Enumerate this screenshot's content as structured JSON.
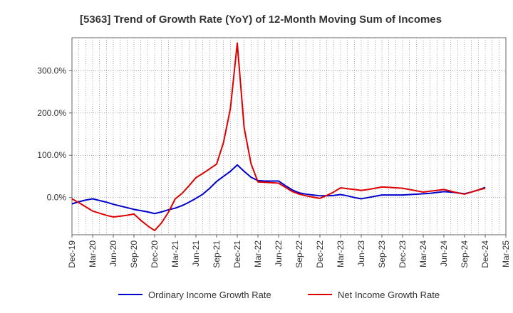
{
  "chart_data": {
    "type": "line",
    "title": "[5363]  Trend of Growth Rate (YoY) of 12-Month Moving Sum of Incomes",
    "xlabel": "",
    "ylabel": "",
    "grid": true,
    "legend_position": "bottom",
    "y_ticks": [
      "300.0%",
      "200.0%",
      "100.0%",
      "0.0%"
    ],
    "y_tick_values": [
      300,
      200,
      100,
      0
    ],
    "ylim": [
      -88,
      378
    ],
    "x_tick_labels": [
      "Dec-19",
      "Mar-20",
      "Jun-20",
      "Sep-20",
      "Dec-20",
      "Mar-21",
      "Jun-21",
      "Sep-21",
      "Dec-21",
      "Mar-22",
      "Jun-22",
      "Sep-22",
      "Dec-22",
      "Mar-23",
      "Jun-23",
      "Sep-23",
      "Dec-23",
      "Mar-24",
      "Jun-24",
      "Sep-24",
      "Dec-24",
      "Mar-25"
    ],
    "x": [
      "Dec-19",
      "Jan-20",
      "Feb-20",
      "Mar-20",
      "Apr-20",
      "May-20",
      "Jun-20",
      "Jul-20",
      "Aug-20",
      "Sep-20",
      "Oct-20",
      "Nov-20",
      "Dec-20",
      "Jan-21",
      "Feb-21",
      "Mar-21",
      "Apr-21",
      "May-21",
      "Jun-21",
      "Jul-21",
      "Aug-21",
      "Sep-21",
      "Oct-21",
      "Nov-21",
      "Dec-21",
      "Jan-22",
      "Feb-22",
      "Mar-22",
      "Apr-22",
      "May-22",
      "Jun-22",
      "Jul-22",
      "Aug-22",
      "Sep-22",
      "Oct-22",
      "Nov-22",
      "Dec-22",
      "Jan-23",
      "Feb-23",
      "Mar-23",
      "Apr-23",
      "May-23",
      "Jun-23",
      "Jul-23",
      "Aug-23",
      "Sep-23",
      "Oct-23",
      "Nov-23",
      "Dec-23",
      "Jan-24",
      "Feb-24",
      "Mar-24",
      "Apr-24",
      "May-24",
      "Jun-24",
      "Jul-24",
      "Aug-24",
      "Sep-24",
      "Oct-24",
      "Nov-24",
      "Dec-24"
    ],
    "series": [
      {
        "name": "Ordinary Income Growth Rate",
        "color": "#0000cc",
        "values": [
          -15,
          -10,
          -6,
          -3,
          -7,
          -11,
          -16,
          -20,
          -24,
          -28,
          -31,
          -34,
          -38,
          -34,
          -29,
          -25,
          -19,
          -11,
          -2,
          8,
          22,
          38,
          50,
          62,
          77,
          62,
          48,
          40,
          39,
          39,
          39,
          28,
          18,
          11,
          8,
          6,
          4,
          4,
          5,
          7,
          4,
          0,
          -3,
          0,
          3,
          6,
          6,
          6,
          6,
          7,
          8,
          9,
          10,
          12,
          14,
          13,
          11,
          9,
          13,
          18,
          24
        ]
      },
      {
        "name": "Net Income Growth Rate",
        "color": "#dd0000",
        "values": [
          -3,
          -12,
          -22,
          -32,
          -37,
          -42,
          -46,
          -44,
          -42,
          -39,
          -54,
          -67,
          -78,
          -60,
          -35,
          -3,
          10,
          28,
          47,
          57,
          68,
          79,
          130,
          210,
          365,
          165,
          80,
          37,
          36,
          35,
          34,
          24,
          14,
          8,
          4,
          1,
          -2,
          5,
          13,
          23,
          21,
          19,
          17,
          19,
          22,
          25,
          24,
          23,
          22,
          19,
          16,
          13,
          15,
          17,
          19,
          15,
          11,
          8,
          13,
          18,
          22
        ]
      }
    ]
  }
}
